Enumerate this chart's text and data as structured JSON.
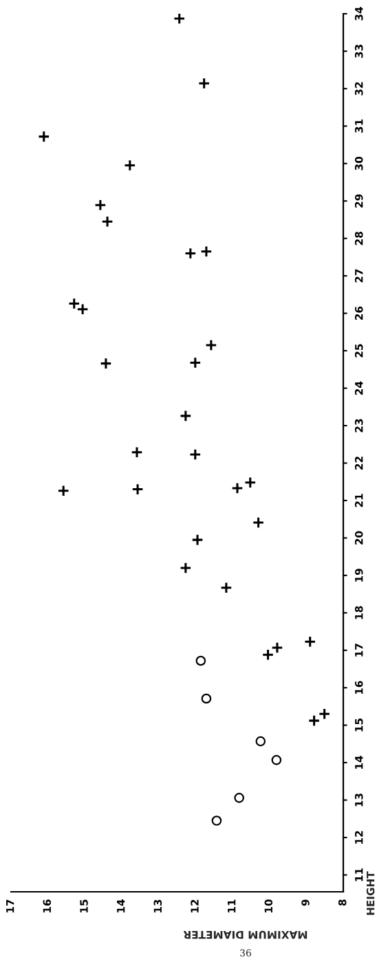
{
  "chart_data": {
    "type": "scatter",
    "xlabel": "MAXIMUM DIAMETER",
    "ylabel": "HEIGHT",
    "series": [
      {
        "color": "#000000",
        "marker": "cross",
        "x": [
          12.44,
          11.77,
          16.11,
          13.78,
          14.58,
          14.39,
          12.14,
          11.71,
          15.29,
          15.06,
          11.58,
          14.43,
          12.01,
          12.27,
          13.59,
          12.01,
          15.58,
          13.57,
          10.87,
          10.52,
          10.3,
          11.95,
          12.27,
          11.17,
          10.04,
          9.79,
          8.9,
          8.79,
          8.51
        ],
        "values": [
          33.87,
          32.14,
          30.72,
          29.95,
          28.89,
          28.45,
          27.6,
          27.65,
          26.26,
          26.11,
          25.15,
          24.66,
          24.68,
          23.26,
          22.29,
          22.23,
          21.26,
          21.3,
          21.33,
          21.48,
          20.41,
          19.95,
          19.2,
          18.67,
          16.88,
          17.07,
          17.23,
          15.12,
          15.3
        ]
      },
      {
        "color": "#000000",
        "marker": "circle",
        "x": [
          11.86,
          11.71,
          10.24,
          9.81,
          10.82,
          11.43
        ],
        "values": [
          16.72,
          15.71,
          14.57,
          14.07,
          13.06,
          12.45
        ]
      }
    ],
    "xlim": [
      17,
      8
    ],
    "xticks": [
      8,
      9,
      10,
      11,
      12,
      13,
      14,
      15,
      16,
      17
    ],
    "ylim": [
      10.55,
      34
    ],
    "yticks": [
      11,
      12,
      13,
      14,
      15,
      16,
      17,
      18,
      19,
      20,
      21,
      22,
      23,
      24,
      25,
      26,
      27,
      28,
      29,
      30,
      31,
      32,
      33,
      34
    ],
    "grid": false,
    "legend": false,
    "annotations": [
      "36"
    ]
  }
}
